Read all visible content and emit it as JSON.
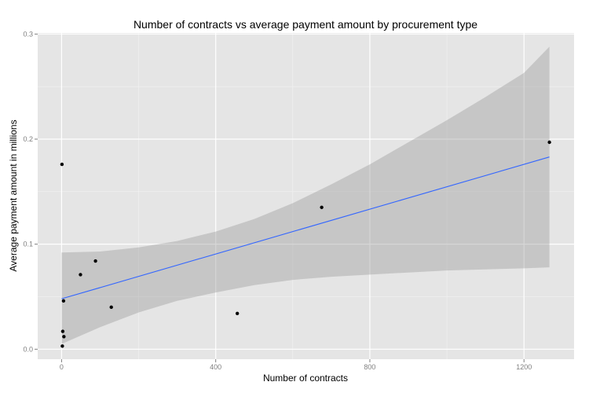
{
  "chart_data": {
    "type": "scatter",
    "title": "Number of contracts vs average payment amount by procurement type",
    "xlabel": "Number of contracts",
    "ylabel": "Average payment amount in millions",
    "xlim": [
      -62,
      1330
    ],
    "ylim": [
      -0.0095,
      0.301
    ],
    "x_ticks": [
      0,
      400,
      800,
      1200
    ],
    "x_tick_labels": [
      "0",
      "400",
      "800",
      "1200"
    ],
    "y_ticks": [
      0.0,
      0.1,
      0.2,
      0.3
    ],
    "y_tick_labels": [
      "0.0",
      "0.1",
      "0.2",
      "0.3"
    ],
    "grid": true,
    "points": [
      {
        "x": 1,
        "y": 0.176
      },
      {
        "x": 2,
        "y": 0.003
      },
      {
        "x": 3,
        "y": 0.017
      },
      {
        "x": 5,
        "y": 0.046
      },
      {
        "x": 6,
        "y": 0.012
      },
      {
        "x": 49,
        "y": 0.071
      },
      {
        "x": 88,
        "y": 0.084
      },
      {
        "x": 129,
        "y": 0.04
      },
      {
        "x": 456,
        "y": 0.034
      },
      {
        "x": 675,
        "y": 0.135
      },
      {
        "x": 1266,
        "y": 0.197
      }
    ],
    "fit_line": {
      "x": [
        0,
        1266
      ],
      "y": [
        0.048,
        0.183
      ]
    },
    "confidence_band": {
      "x": [
        0,
        100,
        200,
        300,
        400,
        500,
        600,
        700,
        800,
        900,
        1000,
        1100,
        1200,
        1266
      ],
      "upper": [
        0.092,
        0.093,
        0.097,
        0.103,
        0.112,
        0.124,
        0.139,
        0.157,
        0.176,
        0.197,
        0.218,
        0.24,
        0.263,
        0.288
      ],
      "lower": [
        0.005,
        0.021,
        0.035,
        0.046,
        0.054,
        0.061,
        0.066,
        0.069,
        0.071,
        0.073,
        0.075,
        0.076,
        0.077,
        0.078
      ]
    },
    "colors": {
      "panel_bg": "#e5e5e5",
      "major_grid": "#ffffff",
      "minor_grid": "#f2f2f2",
      "points": "#000000",
      "line": "#3366ff",
      "band": "#999999"
    }
  }
}
